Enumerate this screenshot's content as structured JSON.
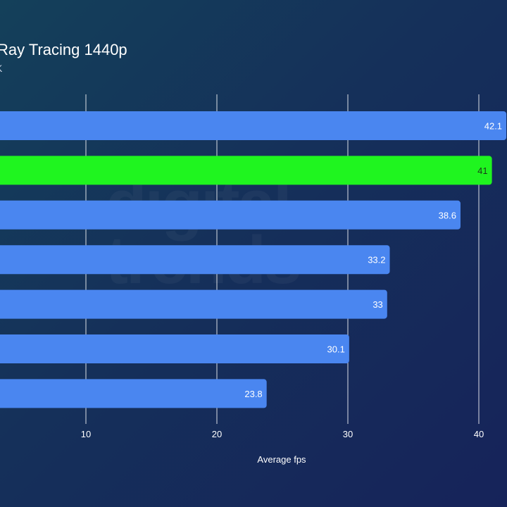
{
  "chart_data": {
    "type": "bar",
    "orientation": "horizontal",
    "title": "Ray Tracing 1440p",
    "subtitle": "K",
    "xlabel": "Average fps",
    "ylabel": "",
    "xlim": [
      0,
      43.5
    ],
    "xticks": [
      10,
      20,
      30,
      40
    ],
    "grid": true,
    "values": [
      42.1,
      41,
      38.6,
      33.2,
      33,
      30.1,
      23.8
    ],
    "value_labels": [
      "42.1",
      "41",
      "38.6",
      "33.2",
      "33",
      "30.1",
      "23.8"
    ],
    "bar_colors": [
      "#4a86f0",
      "#1ff51f",
      "#4a86f0",
      "#4a86f0",
      "#4a86f0",
      "#4a86f0",
      "#4a86f0"
    ],
    "label_colors": [
      "#ffffff",
      "#1a3a1a",
      "#ffffff",
      "#ffffff",
      "#ffffff",
      "#ffffff",
      "#ffffff"
    ]
  },
  "watermark": "digital trends"
}
